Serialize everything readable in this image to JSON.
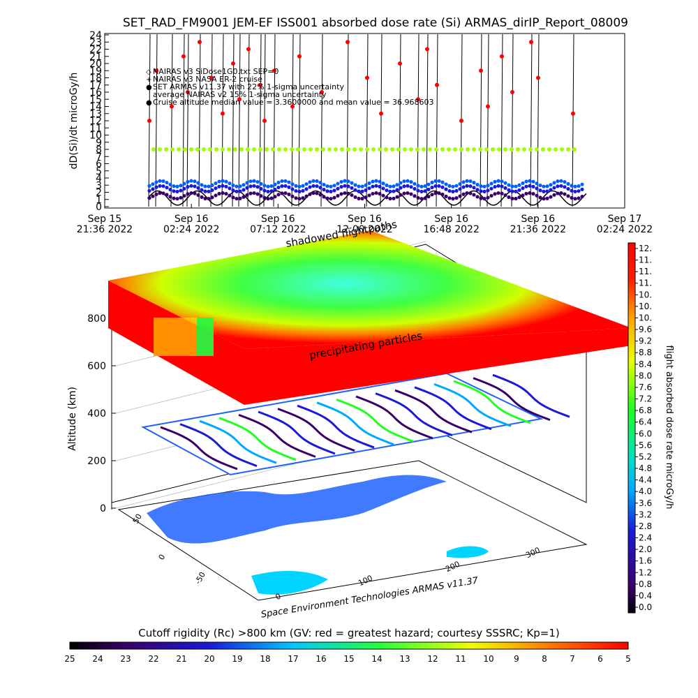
{
  "title": "SET_RAD_FM9001  JEM-EF ISS001 absorbed dose rate (Si) ARMAS_dirIP_Report_08009",
  "credit": "Space Environment Technologies ARMAS v11.37",
  "colors": {
    "red": "#ff0000",
    "dark": "#000000"
  },
  "chart_data": [
    {
      "type": "line",
      "ylabel": "dD(Si)/dt microGy/h",
      "ylim": [
        0,
        24
      ],
      "yticks": [
        "0",
        "1",
        "2",
        "3",
        "4",
        "5",
        "6",
        "7",
        "8",
        "9",
        "10",
        "11",
        "12",
        "13",
        "14",
        "15",
        "16",
        "17",
        "18",
        "19",
        "20",
        "21",
        "22",
        "23",
        "24"
      ],
      "xticks": [
        {
          "line1": "Sep 15",
          "line2": "21:36 2022"
        },
        {
          "line1": "Sep 16",
          "line2": "02:24 2022"
        },
        {
          "line1": "Sep 16",
          "line2": "07:12 2022"
        },
        {
          "line1": "Sep 16",
          "line2": "12:00 2022"
        },
        {
          "line1": "Sep 16",
          "line2": "16:48 2022"
        },
        {
          "line1": "Sep 16",
          "line2": "21:36 2022"
        },
        {
          "line1": "Sep 17",
          "line2": "02:24 2022"
        }
      ],
      "legend": [
        "NAIRAS v3 SiDose1G0.txt SEP=0",
        "NAIRAS v3 NASA ER-2 cruise",
        "SET ARMAS v11.37 with 22% 1-sigma uncertainty",
        "average NAIRAS v2 15% 1-sigma uncertainty",
        "Cruise altitude median value = 3.3600000 and mean value = 36.968603"
      ],
      "baseline_level": 1.2,
      "oscillation_peak": 2.2
    },
    {
      "type": "3d-surface",
      "zlabel": "Altitude (km)",
      "zticks": [
        "0",
        "200",
        "400",
        "600",
        "800"
      ],
      "lat_ticks": [
        "-50",
        "0",
        "50"
      ],
      "lon_ticks": [
        "0",
        "100",
        "200",
        "300"
      ],
      "annotations": [
        "shadowed flightpaths",
        "precipitating particles"
      ]
    },
    {
      "type": "colorbar",
      "label": "flight absorbed dose rate microGy/h",
      "ticks": [
        "12.",
        "11.",
        "11.",
        "11.",
        "10.",
        "10.",
        "10.",
        "9.6",
        "9.2",
        "8.8",
        "8.4",
        "8.0",
        "7.6",
        "7.2",
        "6.8",
        "6.4",
        "6.0",
        "5.6",
        "5.2",
        "4.8",
        "4.4",
        "4.0",
        "3.6",
        "3.2",
        "2.8",
        "2.4",
        "2.0",
        "1.6",
        "1.2",
        "0.8",
        "0.4",
        "0.0"
      ]
    },
    {
      "type": "colorbar",
      "label": "Cutoff rigidity (Rc) >800 km (GV: red = greatest hazard; courtesy SSSRC; Kp=1)",
      "ticks": [
        "25",
        "24",
        "23",
        "22",
        "21",
        "20",
        "19",
        "18",
        "17",
        "16",
        "15",
        "14",
        "13",
        "12",
        "11",
        "10",
        "9",
        "8",
        "7",
        "6",
        "5"
      ]
    }
  ]
}
